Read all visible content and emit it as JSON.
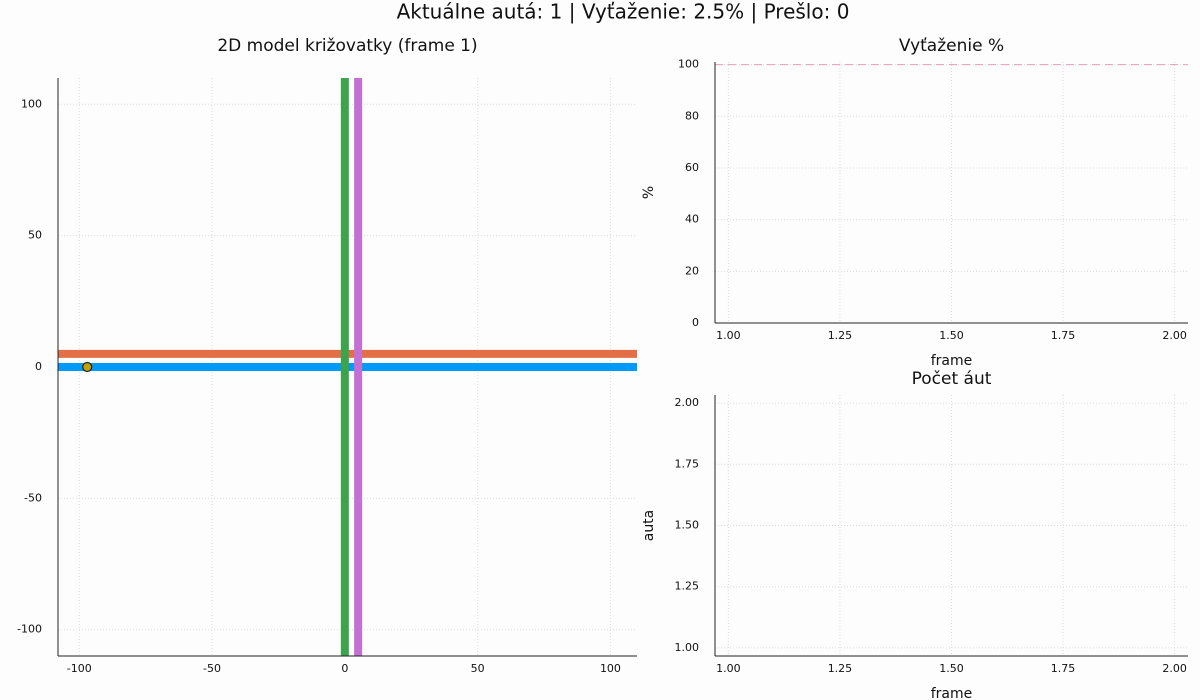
{
  "title": "Aktuálne autá: 1 | Vyťaženie: 2.5% | Prešlo: 0",
  "chart_data": [
    {
      "type": "line",
      "title": "2D model križovatky (frame 1)",
      "xlim": [
        -108,
        110
      ],
      "ylim": [
        -110,
        110
      ],
      "xticks": [
        -100,
        -50,
        0,
        50,
        100
      ],
      "yticks": [
        -100,
        -50,
        0,
        50,
        100
      ],
      "grid": true,
      "series": [
        {
          "color": "#009af9",
          "x": [
            -108,
            110
          ],
          "values": [
            0,
            0
          ]
        },
        {
          "color": "#e26f46",
          "x": [
            -108,
            110
          ],
          "values": [
            5,
            5
          ]
        },
        {
          "color": "#3da44d",
          "x": [
            0,
            0
          ],
          "values": [
            -110,
            110
          ]
        },
        {
          "color": "#c271d2",
          "x": [
            5,
            5
          ],
          "values": [
            -110,
            110
          ]
        },
        {
          "type": "scatter",
          "color": "#c4a000",
          "x": [
            -97
          ],
          "values": [
            0
          ]
        }
      ]
    },
    {
      "type": "line",
      "title": "Vyťaženie %",
      "xlabel": "frame",
      "ylabel": "%",
      "xlim": [
        0.97,
        2.03
      ],
      "ylim": [
        0,
        101
      ],
      "xticks": [
        {
          "value": 1,
          "label": "1.00"
        },
        {
          "value": 1.25,
          "label": "1.25"
        },
        {
          "value": 1.5,
          "label": "1.50"
        },
        {
          "value": 1.75,
          "label": "1.75"
        },
        {
          "value": 2,
          "label": "2.00"
        }
      ],
      "yticks": [
        0,
        20,
        40,
        60,
        80,
        100
      ],
      "grid": true,
      "hline": 100,
      "hline_color": "#e8a0b4",
      "series": []
    },
    {
      "type": "line",
      "title": "Počet áut",
      "xlabel": "frame",
      "ylabel": "auta",
      "xlim": [
        0.97,
        2.03
      ],
      "ylim": [
        0.967,
        2.033
      ],
      "xticks": [
        {
          "value": 1,
          "label": "1.00"
        },
        {
          "value": 1.25,
          "label": "1.25"
        },
        {
          "value": 1.5,
          "label": "1.50"
        },
        {
          "value": 1.75,
          "label": "1.75"
        },
        {
          "value": 2,
          "label": "2.00"
        }
      ],
      "yticks": [
        {
          "value": 1,
          "label": "1.00"
        },
        {
          "value": 1.25,
          "label": "1.25"
        },
        {
          "value": 1.5,
          "label": "1.50"
        },
        {
          "value": 1.75,
          "label": "1.75"
        },
        {
          "value": 2,
          "label": "2.00"
        }
      ],
      "grid": true,
      "series": []
    }
  ]
}
